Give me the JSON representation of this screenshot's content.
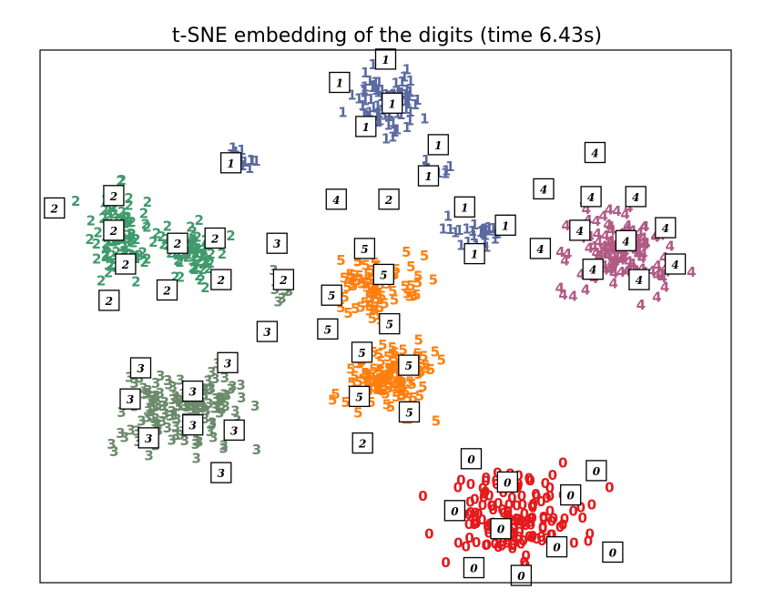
{
  "chart_data": {
    "type": "scatter",
    "title": "t-SNE embedding of the digits (time 6.43s)",
    "xlabel": "",
    "ylabel": "",
    "xlim": [
      0,
      1
    ],
    "ylim": [
      0,
      1
    ],
    "grid": false,
    "legend": "none",
    "colors": {
      "0": "#e41a1c",
      "1": "#5b6aa0",
      "2": "#3f9a6c",
      "3": "#6b8a6b",
      "4": "#b05a85",
      "5": "#ff7f0e"
    },
    "clusters": [
      {
        "label": "0",
        "center": [
          0.69,
          0.115
        ],
        "spread": [
          0.085,
          0.07
        ],
        "count": 150
      },
      {
        "label": "1",
        "center": [
          0.5,
          0.915
        ],
        "spread": [
          0.05,
          0.05
        ],
        "count": 80
      },
      {
        "label": "1",
        "center": [
          0.28,
          0.8
        ],
        "spread": [
          0.018,
          0.014
        ],
        "count": 18
      },
      {
        "label": "1",
        "center": [
          0.64,
          0.66
        ],
        "spread": [
          0.035,
          0.028
        ],
        "count": 30
      },
      {
        "label": "1",
        "center": [
          0.575,
          0.79
        ],
        "spread": [
          0.025,
          0.022
        ],
        "count": 10
      },
      {
        "label": "2",
        "center": [
          0.095,
          0.65
        ],
        "spread": [
          0.042,
          0.07
        ],
        "count": 90
      },
      {
        "label": "2",
        "center": [
          0.21,
          0.62
        ],
        "spread": [
          0.04,
          0.045
        ],
        "count": 60
      },
      {
        "label": "3",
        "center": [
          0.19,
          0.32
        ],
        "spread": [
          0.08,
          0.065
        ],
        "count": 140
      },
      {
        "label": "3",
        "center": [
          0.34,
          0.555
        ],
        "spread": [
          0.015,
          0.03
        ],
        "count": 8
      },
      {
        "label": "4",
        "center": [
          0.86,
          0.625
        ],
        "spread": [
          0.07,
          0.06
        ],
        "count": 120
      },
      {
        "label": "5",
        "center": [
          0.485,
          0.555
        ],
        "spread": [
          0.05,
          0.05
        ],
        "count": 80
      },
      {
        "label": "5",
        "center": [
          0.5,
          0.38
        ],
        "spread": [
          0.055,
          0.06
        ],
        "count": 110
      }
    ],
    "thumbnails": [
      {
        "label": "0",
        "x": 0.63,
        "y": 0.225
      },
      {
        "label": "0",
        "x": 0.685,
        "y": 0.18
      },
      {
        "label": "0",
        "x": 0.82,
        "y": 0.202
      },
      {
        "label": "0",
        "x": 0.781,
        "y": 0.155
      },
      {
        "label": "0",
        "x": 0.605,
        "y": 0.125
      },
      {
        "label": "0",
        "x": 0.675,
        "y": 0.09
      },
      {
        "label": "0",
        "x": 0.76,
        "y": 0.055
      },
      {
        "label": "0",
        "x": 0.845,
        "y": 0.045
      },
      {
        "label": "0",
        "x": 0.634,
        "y": 0.015
      },
      {
        "label": "0",
        "x": 0.706,
        "y": 0.0
      },
      {
        "label": "1",
        "x": 0.5,
        "y": 0.995
      },
      {
        "label": "1",
        "x": 0.43,
        "y": 0.95
      },
      {
        "label": "1",
        "x": 0.51,
        "y": 0.91
      },
      {
        "label": "1",
        "x": 0.47,
        "y": 0.865
      },
      {
        "label": "1",
        "x": 0.58,
        "y": 0.83
      },
      {
        "label": "1",
        "x": 0.565,
        "y": 0.77
      },
      {
        "label": "1",
        "x": 0.265,
        "y": 0.795
      },
      {
        "label": "1",
        "x": 0.62,
        "y": 0.71
      },
      {
        "label": "1",
        "x": 0.682,
        "y": 0.675
      },
      {
        "label": "1",
        "x": 0.635,
        "y": 0.62
      },
      {
        "label": "4",
        "x": 0.425,
        "y": 0.725
      },
      {
        "label": "2",
        "x": 0.505,
        "y": 0.725
      },
      {
        "label": "2",
        "x": 0.087,
        "y": 0.732
      },
      {
        "label": "2",
        "x": -0.003,
        "y": 0.708
      },
      {
        "label": "2",
        "x": 0.087,
        "y": 0.665
      },
      {
        "label": "2",
        "x": 0.184,
        "y": 0.64
      },
      {
        "label": "2",
        "x": 0.241,
        "y": 0.65
      },
      {
        "label": "2",
        "x": 0.105,
        "y": 0.6
      },
      {
        "label": "2",
        "x": 0.25,
        "y": 0.57
      },
      {
        "label": "2",
        "x": 0.168,
        "y": 0.55
      },
      {
        "label": "2",
        "x": 0.08,
        "y": 0.53
      },
      {
        "label": "2",
        "x": 0.345,
        "y": 0.57
      },
      {
        "label": "2",
        "x": 0.465,
        "y": 0.255
      },
      {
        "label": "3",
        "x": 0.335,
        "y": 0.64
      },
      {
        "label": "3",
        "x": 0.32,
        "y": 0.47
      },
      {
        "label": "3",
        "x": 0.128,
        "y": 0.4
      },
      {
        "label": "3",
        "x": 0.26,
        "y": 0.41
      },
      {
        "label": "3",
        "x": 0.112,
        "y": 0.34
      },
      {
        "label": "3",
        "x": 0.207,
        "y": 0.355
      },
      {
        "label": "3",
        "x": 0.207,
        "y": 0.29
      },
      {
        "label": "3",
        "x": 0.27,
        "y": 0.28
      },
      {
        "label": "3",
        "x": 0.14,
        "y": 0.265
      },
      {
        "label": "3",
        "x": 0.25,
        "y": 0.198
      },
      {
        "label": "4",
        "x": 0.818,
        "y": 0.815
      },
      {
        "label": "4",
        "x": 0.74,
        "y": 0.745
      },
      {
        "label": "4",
        "x": 0.812,
        "y": 0.73
      },
      {
        "label": "4",
        "x": 0.88,
        "y": 0.73
      },
      {
        "label": "4",
        "x": 0.795,
        "y": 0.665
      },
      {
        "label": "4",
        "x": 0.925,
        "y": 0.67
      },
      {
        "label": "4",
        "x": 0.865,
        "y": 0.645
      },
      {
        "label": "4",
        "x": 0.735,
        "y": 0.63
      },
      {
        "label": "4",
        "x": 0.815,
        "y": 0.59
      },
      {
        "label": "4",
        "x": 0.94,
        "y": 0.6
      },
      {
        "label": "4",
        "x": 0.885,
        "y": 0.57
      },
      {
        "label": "5",
        "x": 0.468,
        "y": 0.63
      },
      {
        "label": "5",
        "x": 0.497,
        "y": 0.58
      },
      {
        "label": "5",
        "x": 0.418,
        "y": 0.54
      },
      {
        "label": "5",
        "x": 0.506,
        "y": 0.485
      },
      {
        "label": "5",
        "x": 0.412,
        "y": 0.475
      },
      {
        "label": "5",
        "x": 0.464,
        "y": 0.43
      },
      {
        "label": "5",
        "x": 0.535,
        "y": 0.405
      },
      {
        "label": "5",
        "x": 0.46,
        "y": 0.345
      },
      {
        "label": "5",
        "x": 0.536,
        "y": 0.315
      }
    ]
  }
}
